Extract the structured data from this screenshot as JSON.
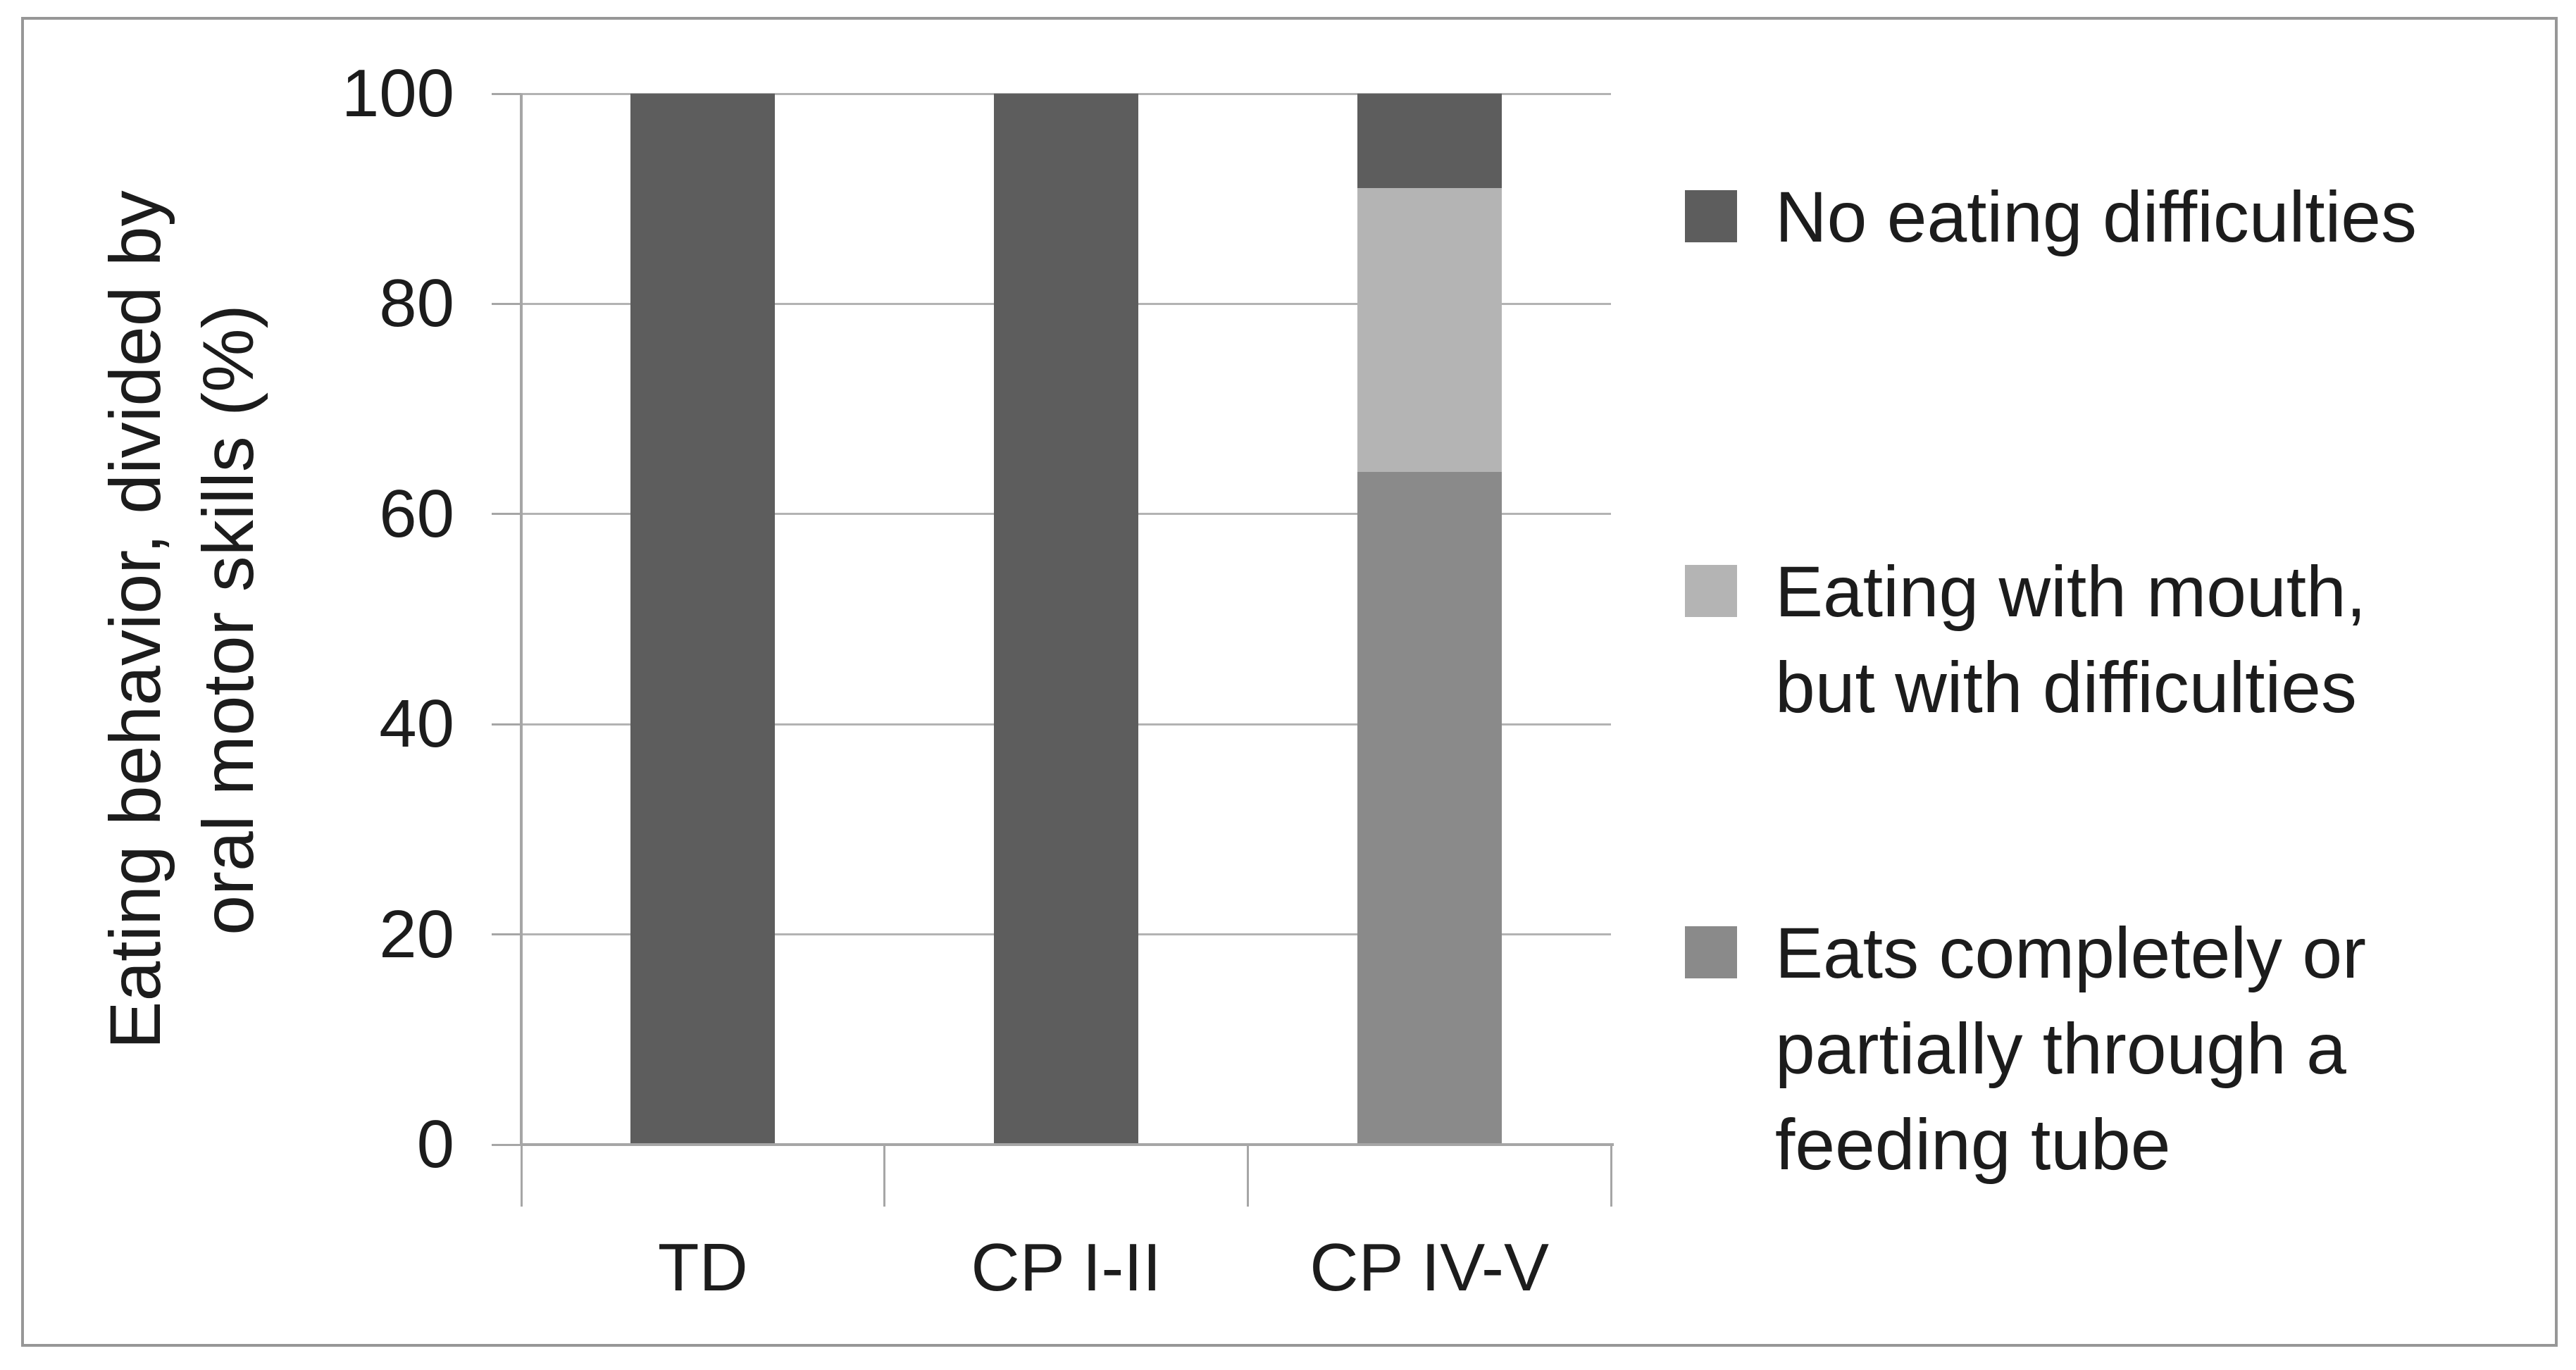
{
  "canvas": {
    "background": "#ffffff",
    "frame_border_color": "#979797"
  },
  "chart_data": {
    "type": "bar",
    "stacked": true,
    "title": "",
    "xlabel": "",
    "ylabel": "Eating behavior, divided by oral motor skills (%)",
    "ylabel_lines": [
      "Eating behavior, divided by",
      "oral motor skills (%)"
    ],
    "categories": [
      "TD",
      "CP I-II",
      "CP IV-V"
    ],
    "series": [
      {
        "name": "Eats completely or partially through a feeding tube",
        "color": "#8a8a8a",
        "values": [
          0,
          0,
          64
        ]
      },
      {
        "name": "Eating with mouth, but with difficulties",
        "color": "#b4b4b4",
        "values": [
          0,
          0,
          27
        ]
      },
      {
        "name": "No eating difficulties",
        "color": "#5d5d5d",
        "values": [
          100,
          100,
          9
        ]
      }
    ],
    "ylim": [
      0,
      100
    ],
    "yticks": [
      0,
      20,
      40,
      60,
      80,
      100
    ],
    "grid": true,
    "axis_color": "#a6a6a6",
    "gridline_color": "#b3b3b3",
    "legend_position": "right",
    "legend": [
      {
        "series": "No eating difficulties",
        "lines": [
          "No eating difficulties"
        ],
        "color": "#5d5d5d"
      },
      {
        "series": "Eating with mouth, but with difficulties",
        "lines": [
          "Eating with mouth,",
          "but with difficulties"
        ],
        "color": "#b4b4b4"
      },
      {
        "series": "Eats completely or partially through a feeding tube",
        "lines": [
          "Eats completely or",
          "partially through a",
          "feeding tube"
        ],
        "color": "#8a8a8a"
      }
    ]
  }
}
